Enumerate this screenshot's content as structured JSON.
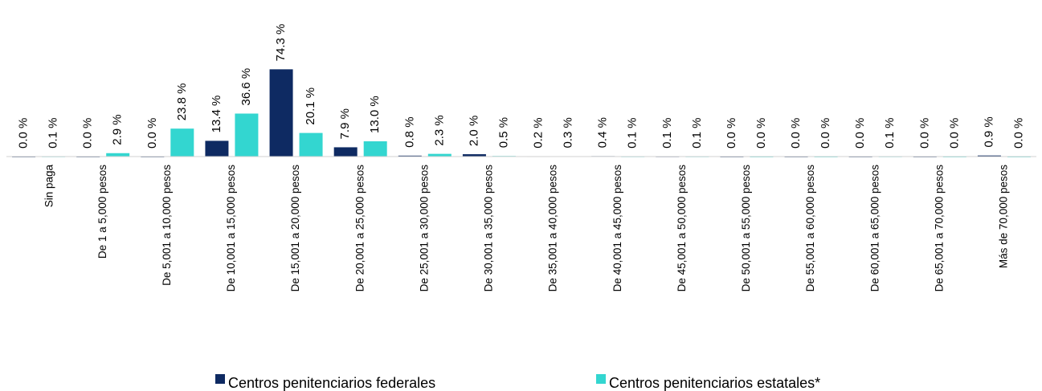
{
  "chart_data": {
    "type": "bar",
    "categories": [
      "Sin paga",
      "De 1 a 5,000 pesos",
      "De 5,001 a 10,000 pesos",
      "De 10,001 a 15,000 pesos",
      "De 15,001 a 20,000 pesos",
      "De 20,001 a 25,000 pesos",
      "De 25,001 a 30,000 pesos",
      "De 30,001 a 35,000 pesos",
      "De 35,001 a 40,000 pesos",
      "De 40,001 a 45,000 pesos",
      "De 45,001 a 50,000 pesos",
      "De 50,001 a 55,000 pesos",
      "De 55,001 a 60,000 pesos",
      "De 60,001 a 65,000 pesos",
      "De 65,001 a 70,000 pesos",
      "Más de 70,000 pesos"
    ],
    "series": [
      {
        "name": "Centros penitenciarios federales",
        "color": "#0e2a62",
        "values": [
          0.0,
          0.0,
          0.0,
          13.4,
          74.3,
          7.9,
          0.8,
          2.0,
          0.2,
          0.4,
          0.1,
          0.0,
          0.0,
          0.0,
          0.0,
          0.9
        ],
        "value_labels": [
          "0.0 %",
          "0.0 %",
          "0.0 %",
          "13.4 %",
          "74.3 %",
          "7.9 %",
          "0.8 %",
          "2.0 %",
          "0.2 %",
          "0.4 %",
          "0.1 %",
          "0.0 %",
          "0.0 %",
          "0.0 %",
          "0.0 %",
          "0.9 %"
        ]
      },
      {
        "name": "Centros penitenciarios estatales*",
        "color": "#33d6d0",
        "values": [
          0.1,
          2.9,
          23.8,
          36.6,
          20.1,
          13.0,
          2.3,
          0.5,
          0.3,
          0.1,
          0.1,
          0.0,
          0.0,
          0.1,
          0.0,
          0.0
        ],
        "value_labels": [
          "0.1 %",
          "2.9 %",
          "23.8 %",
          "36.6 %",
          "20.1 %",
          "13.0 %",
          "2.3 %",
          "0.5 %",
          "0.3 %",
          "0.1 %",
          "0.1 %",
          "0.0 %",
          "0.0 %",
          "0.1 %",
          "0.0 %",
          "0.0 %"
        ]
      }
    ],
    "ylim": [
      0,
      80
    ]
  }
}
